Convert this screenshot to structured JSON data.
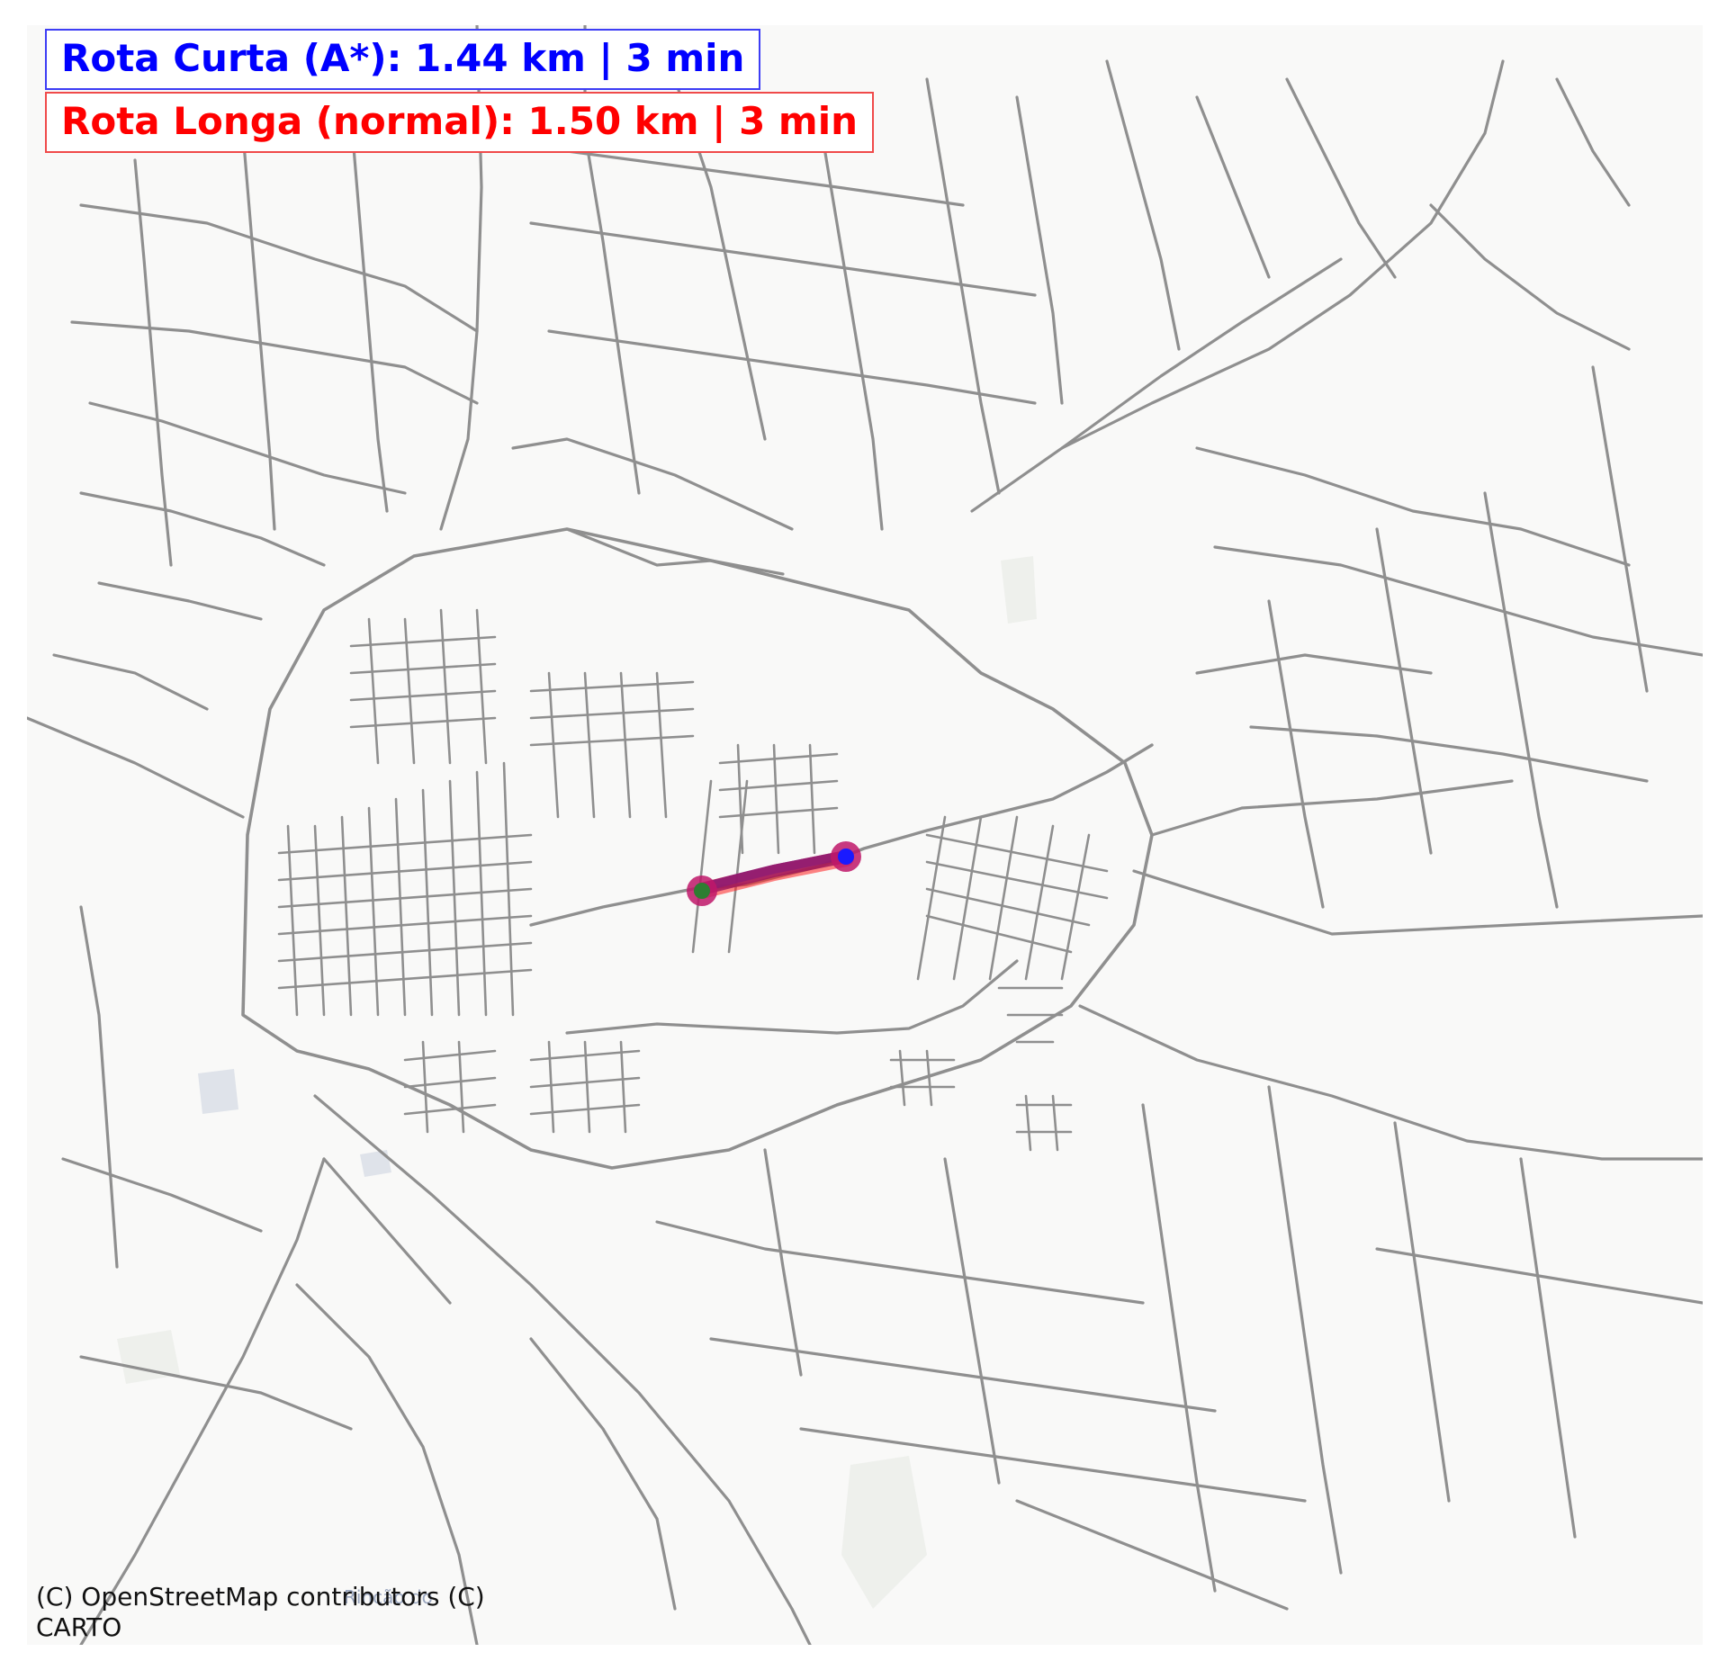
{
  "legend": {
    "short_route": "Rota Curta (A*): 1.44 km | 3 min",
    "long_route": "Rota Longa (normal): 1.50 km | 3 min"
  },
  "attribution": {
    "line1": "(C) OpenStreetMap contributors (C)",
    "line2": "CARTO"
  },
  "basemap": {
    "place_label": "Rincão do"
  },
  "colors": {
    "map_background": "#f9f9f8",
    "road": "#8f8f8f",
    "short_route": "#0000ff",
    "long_route": "#ff0000",
    "route_overlap": "#a0185c",
    "origin_marker": "#2e7d32",
    "destination_marker": "#1a1aff"
  },
  "icons": {
    "origin": "origin-marker-icon",
    "destination": "destination-marker-icon"
  }
}
